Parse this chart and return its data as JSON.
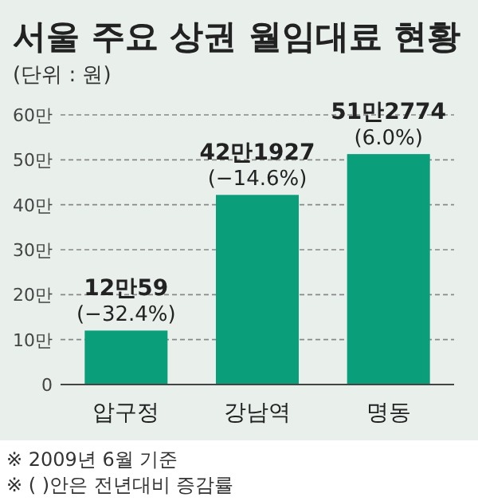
{
  "chart_data": {
    "type": "bar",
    "title": "서울 주요 상권 월임대료 현황",
    "subtitle": "(단위 : 원)",
    "categories": [
      "압구정",
      "강남역",
      "명동"
    ],
    "values": [
      12.0059,
      42.1927,
      51.2774
    ],
    "value_labels": [
      "12만59",
      "42만1927",
      "51만2774"
    ],
    "color": "#0b9e7a",
    "ylim": [
      0,
      60
    ],
    "yticks": [
      0,
      {
        "value": 10,
        "label": "10만"
      },
      {
        "value": 20,
        "label": "20만"
      },
      {
        "value": 30,
        "label": "30만"
      },
      {
        "value": 40,
        "label": "40만"
      },
      {
        "value": 50,
        "label": "50만"
      },
      {
        "value": 60,
        "label": "60만"
      }
    ],
    "grid": "y",
    "annotations": [
      {
        "text": "(−32.4%)",
        "x": "압구정",
        "y": 12.0059
      },
      {
        "text": "(−14.6%)",
        "x": "강남역",
        "y": 42.1927
      },
      {
        "text": "(6.0%)",
        "x": "명동",
        "y": 51.2774
      },
      "※ 2009년 6월 기준",
      "※ ( )안은 전년대비 증감률"
    ]
  }
}
